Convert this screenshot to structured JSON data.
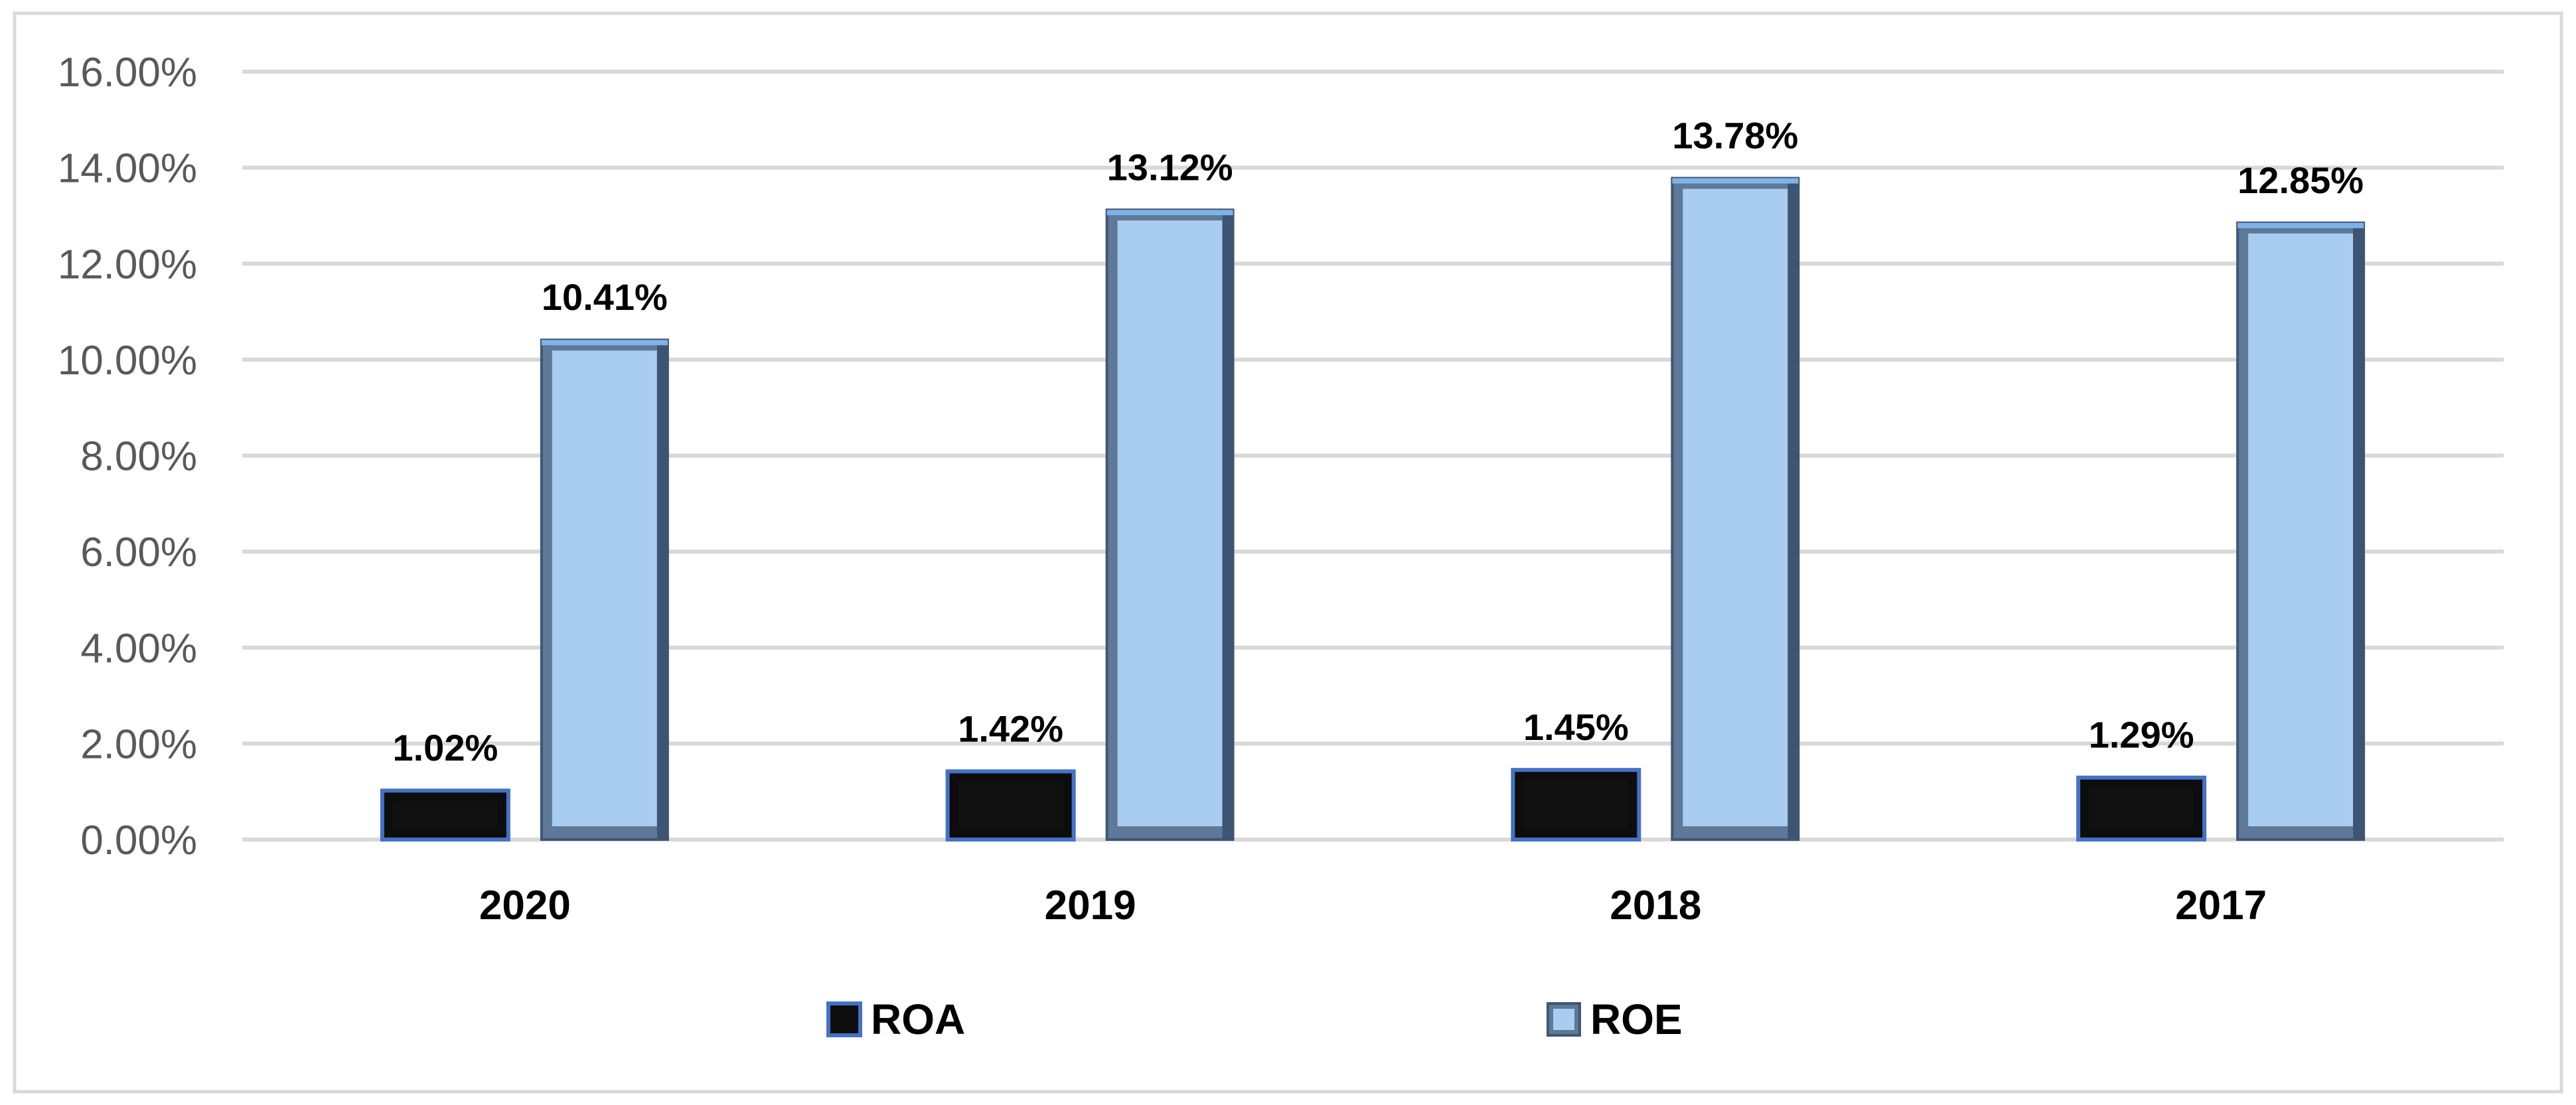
{
  "chart_data": {
    "type": "bar",
    "title": "",
    "xlabel": "",
    "ylabel": "",
    "categories": [
      "2020",
      "2019",
      "2018",
      "2017"
    ],
    "series": [
      {
        "name": "ROA",
        "values": [
          1.02,
          1.42,
          1.45,
          1.29
        ],
        "labels": [
          "1.02%",
          "1.42%",
          "1.45%",
          "1.29%"
        ],
        "color": "#0d0d0d",
        "edge_color": "#4472c4"
      },
      {
        "name": "ROE",
        "values": [
          10.41,
          13.12,
          13.78,
          12.85
        ],
        "labels": [
          "10.41%",
          "13.12%",
          "13.78%",
          "12.85%"
        ],
        "color": "#a9cdf0",
        "edge_color": "#5b7fa6"
      }
    ],
    "ylim": [
      0,
      16
    ],
    "yticks": [
      0,
      2,
      4,
      6,
      8,
      10,
      12,
      14,
      16
    ],
    "ytick_labels": [
      "0.00%",
      "2.00%",
      "4.00%",
      "6.00%",
      "8.00%",
      "10.00%",
      "12.00%",
      "14.00%",
      "16.00%"
    ],
    "grid": true,
    "legend": "bottom-center"
  }
}
